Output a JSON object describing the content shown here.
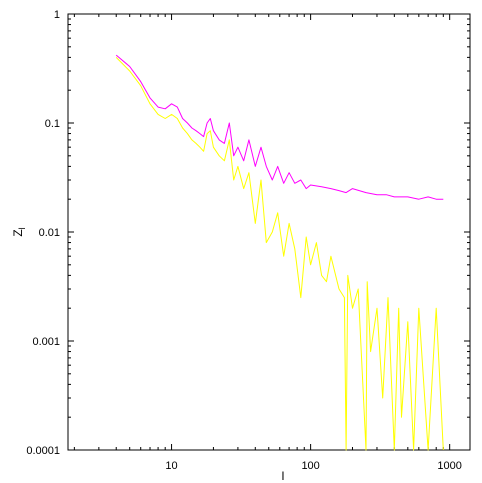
{
  "chart_data": {
    "type": "line",
    "xlabel": "l",
    "ylabel": "Z_l",
    "xscale": "log",
    "yscale": "log",
    "xlim": [
      1.8,
      1400
    ],
    "ylim": [
      0.0001,
      1
    ],
    "grid": false,
    "legend": "none",
    "x_ticks": [
      {
        "value": 10,
        "label": "10"
      },
      {
        "value": 100,
        "label": "100"
      },
      {
        "value": 1000,
        "label": "1000"
      }
    ],
    "y_ticks": [
      {
        "value": 1,
        "label": "1"
      },
      {
        "value": 0.1,
        "label": "0.1"
      },
      {
        "value": 0.01,
        "label": "0.01"
      },
      {
        "value": 0.001,
        "label": "0.001"
      },
      {
        "value": 0.0001,
        "label": "0.0001"
      }
    ],
    "series": [
      {
        "color": "#ff00ff",
        "x": [
          4,
          5,
          6,
          7,
          8,
          9,
          10,
          11,
          12,
          13,
          14,
          15,
          16,
          17,
          18,
          19,
          20,
          22,
          24,
          26,
          28,
          30,
          33,
          36,
          40,
          44,
          48,
          53,
          58,
          64,
          70,
          77,
          85,
          93,
          100,
          120,
          140,
          160,
          180,
          200,
          250,
          300,
          350,
          400,
          500,
          600,
          700,
          800,
          900
        ],
        "y": [
          0.42,
          0.33,
          0.24,
          0.17,
          0.14,
          0.135,
          0.15,
          0.14,
          0.11,
          0.1,
          0.09,
          0.085,
          0.08,
          0.075,
          0.1,
          0.11,
          0.085,
          0.07,
          0.065,
          0.1,
          0.05,
          0.06,
          0.045,
          0.07,
          0.04,
          0.06,
          0.04,
          0.03,
          0.04,
          0.028,
          0.035,
          0.028,
          0.03,
          0.025,
          0.027,
          0.026,
          0.025,
          0.024,
          0.023,
          0.025,
          0.023,
          0.022,
          0.022,
          0.021,
          0.021,
          0.02,
          0.021,
          0.02,
          0.02
        ]
      },
      {
        "color": "#ffff00",
        "x": [
          4,
          5,
          6,
          7,
          8,
          9,
          10,
          11,
          12,
          13,
          14,
          15,
          16,
          17,
          18,
          19,
          20,
          22,
          24,
          26,
          28,
          30,
          33,
          36,
          40,
          44,
          48,
          53,
          58,
          64,
          70,
          77,
          85,
          93,
          100,
          110,
          120,
          130,
          140,
          160,
          175,
          180,
          185,
          200,
          220,
          240,
          250,
          255,
          270,
          300,
          330,
          360,
          400,
          430,
          450,
          500,
          550,
          600,
          700,
          800,
          900
        ],
        "y": [
          0.4,
          0.3,
          0.22,
          0.15,
          0.12,
          0.11,
          0.12,
          0.11,
          0.09,
          0.08,
          0.07,
          0.065,
          0.06,
          0.055,
          0.08,
          0.085,
          0.06,
          0.05,
          0.045,
          0.07,
          0.03,
          0.04,
          0.025,
          0.035,
          0.012,
          0.03,
          0.008,
          0.01,
          0.015,
          0.006,
          0.012,
          0.007,
          0.0025,
          0.009,
          0.005,
          0.008,
          0.004,
          0.0035,
          0.006,
          0.003,
          0.0025,
          0.0001,
          0.004,
          0.002,
          0.003,
          0.0003,
          0.0001,
          0.0035,
          0.0008,
          0.002,
          0.0003,
          0.0025,
          0.0001,
          0.002,
          0.0002,
          0.0015,
          0.0001,
          0.002,
          0.0001,
          0.002,
          0.0001
        ]
      }
    ]
  }
}
